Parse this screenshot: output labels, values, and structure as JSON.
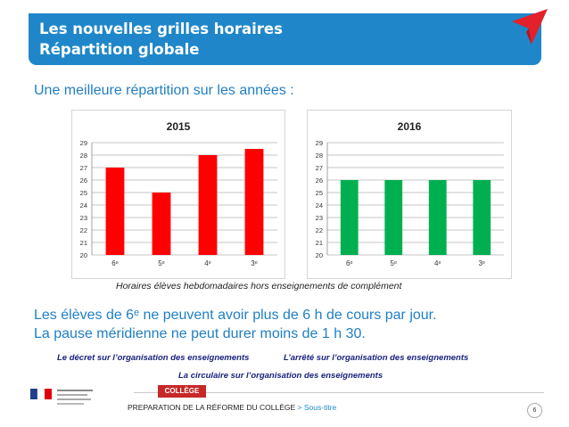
{
  "header": {
    "title_line1": "Les nouvelles grilles horaires",
    "title_line2": "Répartition globale"
  },
  "subtitle": "Une meilleure répartition sur les années :",
  "chart_data": [
    {
      "type": "bar",
      "title": "2015",
      "categories": [
        "6ᵉ",
        "5ᵉ",
        "4ᵉ",
        "3ᵉ"
      ],
      "values": [
        27,
        25,
        28,
        28.5
      ],
      "ylim": [
        20,
        29
      ],
      "yticks": [
        20,
        21,
        22,
        23,
        24,
        25,
        26,
        27,
        28,
        29
      ],
      "grid": true,
      "color": "#ff0000"
    },
    {
      "type": "bar",
      "title": "2016",
      "categories": [
        "6ᵉ",
        "5ᵉ",
        "4ᵉ",
        "3ᵉ"
      ],
      "values": [
        26,
        26,
        26,
        26
      ],
      "ylim": [
        20,
        29
      ],
      "yticks": [
        20,
        21,
        22,
        23,
        24,
        25,
        26,
        27,
        28,
        29
      ],
      "grid": true,
      "color": "#00b050"
    }
  ],
  "caption": "Horaires élèves hebdomadaires hors enseignements de complément",
  "paragraph": {
    "line1": "Les élèves de 6ᵉ ne peuvent avoir plus de 6 h de cours par jour.",
    "line2": "La pause méridienne ne peut durer moins de 1 h 30."
  },
  "links": {
    "decret": "Le décret sur l’organisation des enseignements",
    "arrete": "L’arrêté sur l’organisation des enseignements",
    "circulaire": "La circulaire sur l’organisation des enseignements"
  },
  "footer": {
    "badge": "COLLÈGE",
    "text": "PREPARATION DE LA RÉFORME DU COLLÈGE",
    "separator": ">",
    "subtitle": "Sous-titre",
    "page": "6"
  },
  "colors": {
    "accent": "#1f87c9",
    "bar2015": "#ff0000",
    "bar2016": "#00b050",
    "plane": "#e4202a"
  },
  "icons": {
    "logo": "republique-francaise-logo",
    "plane": "paper-plane-icon"
  }
}
